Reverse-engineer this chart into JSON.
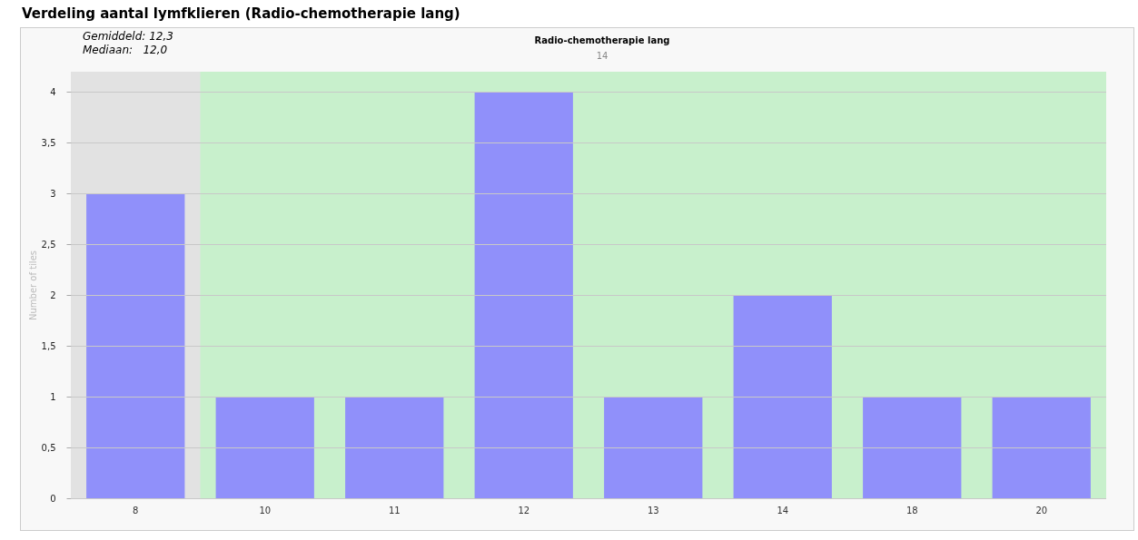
{
  "chart_data": {
    "type": "bar",
    "title": "Verdeling aantal lymfklieren (Radio-chemotherapie lang)",
    "ylabel": "Number of tiles",
    "annotations": [
      "Gemiddeld: 12,3",
      "Mediaan:   12,0",
      "Radio-chemotherapie lang",
      "14"
    ],
    "categories": [
      "8",
      "10",
      "11",
      "12",
      "13",
      "14",
      "18",
      "20"
    ],
    "values": [
      3,
      1,
      1,
      4,
      1,
      2,
      1,
      1
    ],
    "color": "#9090fa",
    "ylim": [
      0,
      4.2
    ],
    "yticks": [
      0,
      {
        "value": 0.5,
        "label": "0,5"
      },
      1,
      {
        "value": 1.5,
        "label": "1,5"
      },
      2,
      {
        "value": 2.5,
        "label": "2,5"
      },
      3,
      {
        "value": 3.5,
        "label": "3,5"
      },
      4
    ],
    "grid": "y",
    "bands": [
      {
        "axis": "x",
        "from": "10",
        "to": "20",
        "color": "#c8f0cc"
      }
    ]
  }
}
